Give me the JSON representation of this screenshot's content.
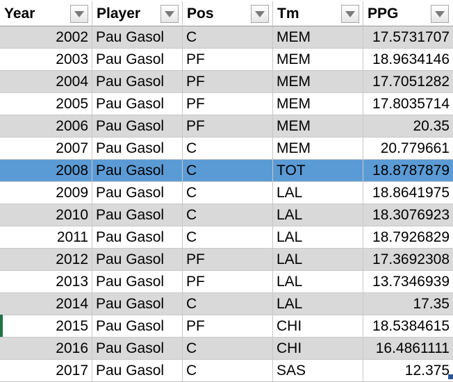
{
  "columns": {
    "year": "Year",
    "player": "Player",
    "pos": "Pos",
    "tm": "Tm",
    "ppg": "PPG"
  },
  "icons": {
    "filter": "filter-dropdown-icon"
  },
  "colors": {
    "alt_row": "#d9d9d9",
    "selected_row": "#5b9bd5",
    "gridline": "#c8c8c8"
  },
  "rows": [
    {
      "year": "2002",
      "player": "Pau Gasol",
      "pos": "C",
      "tm": "MEM",
      "ppg": "17.5731707"
    },
    {
      "year": "2003",
      "player": "Pau Gasol",
      "pos": "PF",
      "tm": "MEM",
      "ppg": "18.9634146"
    },
    {
      "year": "2004",
      "player": "Pau Gasol",
      "pos": "PF",
      "tm": "MEM",
      "ppg": "17.7051282"
    },
    {
      "year": "2005",
      "player": "Pau Gasol",
      "pos": "PF",
      "tm": "MEM",
      "ppg": "17.8035714"
    },
    {
      "year": "2006",
      "player": "Pau Gasol",
      "pos": "PF",
      "tm": "MEM",
      "ppg": "20.35"
    },
    {
      "year": "2007",
      "player": "Pau Gasol",
      "pos": "C",
      "tm": "MEM",
      "ppg": "20.779661"
    },
    {
      "year": "2008",
      "player": "Pau Gasol",
      "pos": "C",
      "tm": "TOT",
      "ppg": "18.8787879"
    },
    {
      "year": "2009",
      "player": "Pau Gasol",
      "pos": "C",
      "tm": "LAL",
      "ppg": "18.8641975"
    },
    {
      "year": "2010",
      "player": "Pau Gasol",
      "pos": "C",
      "tm": "LAL",
      "ppg": "18.3076923"
    },
    {
      "year": "2011",
      "player": "Pau Gasol",
      "pos": "C",
      "tm": "LAL",
      "ppg": "18.7926829"
    },
    {
      "year": "2012",
      "player": "Pau Gasol",
      "pos": "PF",
      "tm": "LAL",
      "ppg": "17.3692308"
    },
    {
      "year": "2013",
      "player": "Pau Gasol",
      "pos": "PF",
      "tm": "LAL",
      "ppg": "13.7346939"
    },
    {
      "year": "2014",
      "player": "Pau Gasol",
      "pos": "C",
      "tm": "LAL",
      "ppg": "17.35"
    },
    {
      "year": "2015",
      "player": "Pau Gasol",
      "pos": "PF",
      "tm": "CHI",
      "ppg": "18.5384615"
    },
    {
      "year": "2016",
      "player": "Pau Gasol",
      "pos": "C",
      "tm": "CHI",
      "ppg": "16.4861111"
    },
    {
      "year": "2017",
      "player": "Pau Gasol",
      "pos": "C",
      "tm": "SAS",
      "ppg": "12.375"
    }
  ]
}
